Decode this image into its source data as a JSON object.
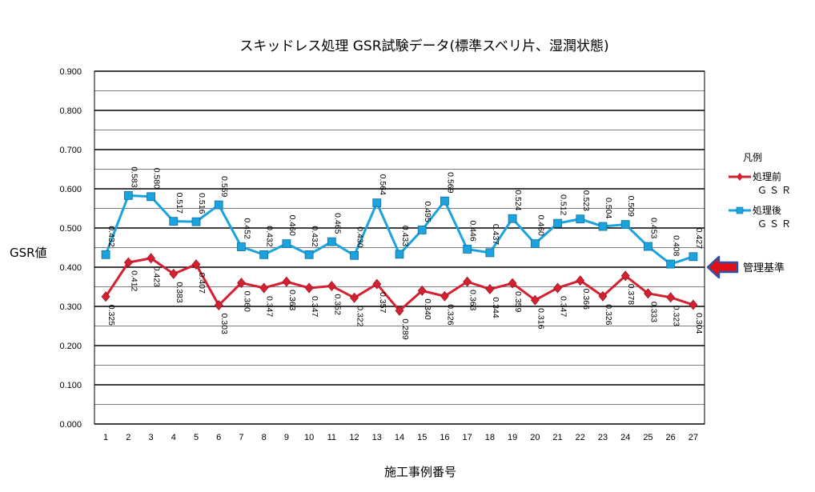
{
  "chart_data": {
    "type": "line",
    "title": "スキッドレス処理 GSR試験データ(標準スベリ片、湿潤状態)",
    "xlabel": "施工事例番号",
    "ylabel": "GSR値",
    "categories": [
      "1",
      "2",
      "3",
      "4",
      "5",
      "6",
      "7",
      "8",
      "9",
      "10",
      "11",
      "12",
      "13",
      "14",
      "15",
      "16",
      "17",
      "18",
      "19",
      "20",
      "21",
      "22",
      "23",
      "24",
      "25",
      "26",
      "27"
    ],
    "ylim": [
      0,
      0.9
    ],
    "yticks": [
      "0.000",
      "0.100",
      "0.200",
      "0.300",
      "0.400",
      "0.500",
      "0.600",
      "0.700",
      "0.800",
      "0.900"
    ],
    "grid": true,
    "legend_title": "凡例",
    "legend_position": "right",
    "series": [
      {
        "name_line1": "処理前",
        "name_line2": "ＧＳＲ",
        "color": "#d42030",
        "marker": "diamond",
        "values": [
          0.325,
          0.412,
          0.423,
          0.383,
          0.407,
          0.303,
          0.36,
          0.347,
          0.363,
          0.347,
          0.352,
          0.322,
          0.357,
          0.289,
          0.34,
          0.326,
          0.363,
          0.344,
          0.359,
          0.316,
          0.347,
          0.366,
          0.326,
          0.378,
          0.333,
          0.323,
          0.304
        ],
        "labels": [
          "0.325",
          "0.412",
          "0.423",
          "0.383",
          "0.407",
          "0.303",
          "0.360",
          "0.347",
          "0.363",
          "0.347",
          "0.352",
          "0.322",
          "0.357",
          "0.289",
          "0.340",
          "0.326",
          "0.363",
          "0.344",
          "0.359",
          "0.316",
          "0.347",
          "0.366",
          "0.326",
          "0.378",
          "0.333",
          "0.323",
          "0.304"
        ]
      },
      {
        "name_line1": "処理後",
        "name_line2": "ＧＳＲ",
        "color": "#1aa3dc",
        "marker": "square",
        "values": [
          0.432,
          0.583,
          0.58,
          0.517,
          0.516,
          0.559,
          0.452,
          0.432,
          0.46,
          0.432,
          0.465,
          0.43,
          0.564,
          0.433,
          0.495,
          0.569,
          0.446,
          0.437,
          0.524,
          0.46,
          0.512,
          0.523,
          0.504,
          0.509,
          0.453,
          0.408,
          0.427
        ],
        "labels": [
          "0.432",
          "0.583",
          "0.580",
          "0.517",
          "0.516",
          "0.559",
          "0.452",
          "0.432",
          "0.460",
          "0.432",
          "0.465",
          "0.430",
          "0.564",
          "0.433",
          "0.495",
          "0.569",
          "0.446",
          "0.437",
          "0.524",
          "0.460",
          "0.512",
          "0.523",
          "0.504",
          "0.509",
          "0.453",
          "0.408",
          "0.427"
        ]
      }
    ],
    "annotation": {
      "text": "管理基準",
      "value": 0.4,
      "arrow_color": "#e0101a",
      "arrow_border": "#3050a0"
    }
  }
}
